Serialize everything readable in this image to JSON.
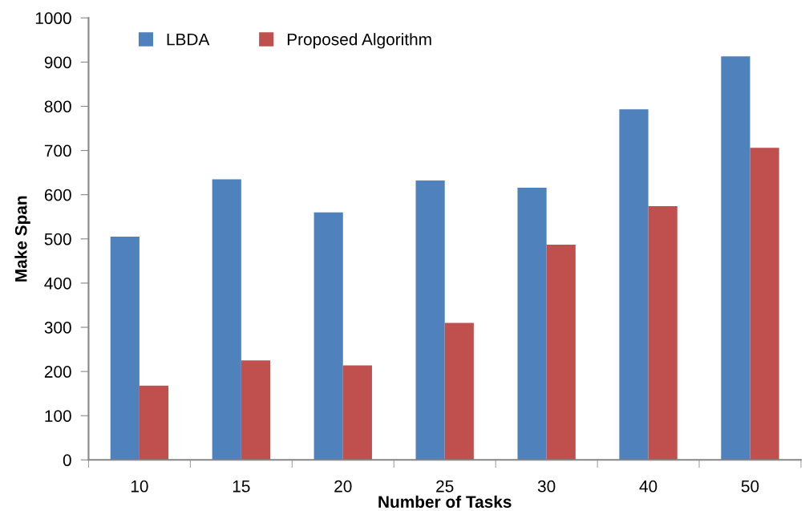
{
  "chart_data": {
    "type": "bar",
    "xlabel": "Number of Tasks",
    "ylabel": "Make Span",
    "categories": [
      "10",
      "15",
      "20",
      "25",
      "30",
      "40",
      "50"
    ],
    "series": [
      {
        "name": "LBDA",
        "color": "#4f81bd",
        "values": [
          505,
          635,
          560,
          632,
          616,
          793,
          913
        ]
      },
      {
        "name": "Proposed Algorithm",
        "color": "#c0504d",
        "values": [
          168,
          225,
          214,
          310,
          487,
          574,
          706
        ]
      }
    ],
    "ylim": [
      0,
      1000
    ],
    "yticks": [
      0,
      100,
      200,
      300,
      400,
      500,
      600,
      700,
      800,
      900,
      1000
    ],
    "grid": false,
    "legend": "top left"
  }
}
